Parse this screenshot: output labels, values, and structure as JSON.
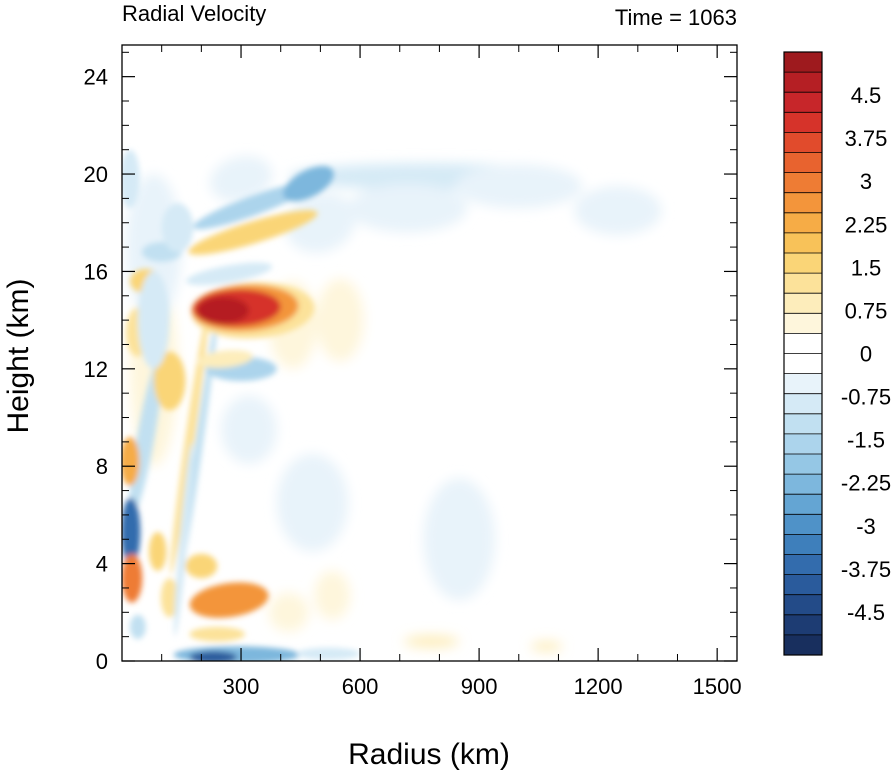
{
  "chart_data": {
    "type": "heatmap",
    "title": "Radial Velocity",
    "subtitle": "Time = 1063",
    "xlabel": "Radius (km)",
    "ylabel": "Height (km)",
    "xlim": [
      0,
      1550
    ],
    "ylim": [
      0,
      25.3
    ],
    "x_ticks": [
      300,
      600,
      900,
      1200,
      1500
    ],
    "x_tick_labels": [
      "300",
      "600",
      "900",
      "1200",
      "1500"
    ],
    "y_ticks": [
      0,
      4,
      8,
      12,
      16,
      20,
      24
    ],
    "y_tick_labels": [
      "0",
      "4",
      "8",
      "12",
      "16",
      "20",
      "24"
    ],
    "colorbar": {
      "levels": 30,
      "min": -5.25,
      "max": 5.25,
      "tick_values": [
        4.5,
        3.75,
        3,
        2.25,
        1.5,
        0.75,
        0,
        -0.75,
        -1.5,
        -2.25,
        -3,
        -3.75,
        -4.5
      ],
      "tick_labels": [
        "4.5",
        "3.75",
        "3",
        "2.25",
        "1.5",
        "0.75",
        "0",
        "-0.75",
        "-1.5",
        "-2.25",
        "-3",
        "-3.75",
        "-4.5"
      ],
      "colors": [
        "#9e1a1e",
        "#b51f24",
        "#c7262a",
        "#d6332a",
        "#e14b2c",
        "#e8632f",
        "#ee7c34",
        "#f3953b",
        "#f6ac46",
        "#f8c259",
        "#fad577",
        "#fce29a",
        "#fdedbb",
        "#fef6dc",
        "#ffffff",
        "#ffffff",
        "#e8f3fa",
        "#d5eaf6",
        "#c1e0f1",
        "#acd4ec",
        "#95c7e5",
        "#7db7dd",
        "#64a5d3",
        "#4f92c8",
        "#3e7fbb",
        "#336cad",
        "#2a5b9c",
        "#234b88",
        "#1d3c73",
        "#182f5e"
      ]
    },
    "features": [
      {
        "name": "strong outflow jet",
        "x": [
          180,
          470
        ],
        "z": [
          13.1,
          15.5
        ],
        "peak": 5.0
      },
      {
        "name": "upper outflow band",
        "x": [
          200,
          520
        ],
        "z": [
          16.0,
          18.2
        ],
        "peak": 1.8
      },
      {
        "name": "upper inflow band",
        "x": [
          380,
          1100
        ],
        "z": [
          19.4,
          20.6
        ],
        "peak": -1.2
      },
      {
        "name": "low-level outflow",
        "x": [
          180,
          360
        ],
        "z": [
          2.0,
          3.3
        ],
        "peak": 3.0
      },
      {
        "name": "boundary-layer inflow",
        "x": [
          160,
          600
        ],
        "z": [
          0,
          0.7
        ],
        "peak": -4.0
      },
      {
        "name": "eye inflow",
        "x": [
          0,
          60
        ],
        "z": [
          4.0,
          6.5
        ],
        "peak": -3.5
      },
      {
        "name": "eye outflow",
        "x": [
          0,
          60
        ],
        "z": [
          2.5,
          4.2
        ],
        "peak": 3.0
      },
      {
        "name": "mid-level outflow",
        "x": [
          0,
          50
        ],
        "z": [
          7.5,
          9.0
        ],
        "peak": 2.3
      }
    ]
  }
}
